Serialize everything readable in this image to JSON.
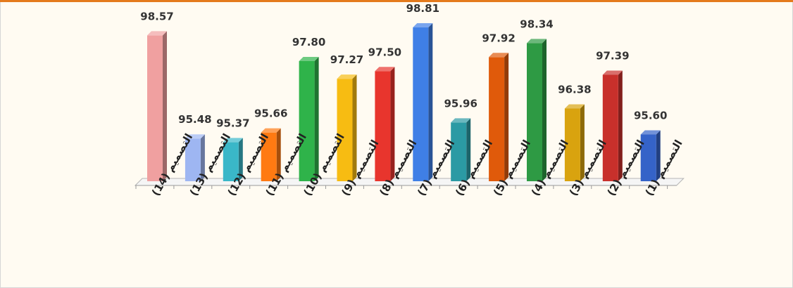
{
  "chart_data": {
    "type": "bar",
    "categories": [
      "التصميم (14)",
      "التصميم (13)",
      "التصميم (12)",
      "التصميم (11)",
      "التصميم (10)",
      "التصميم (9)",
      "التصميم (8)",
      "التصميم (7)",
      "التصميم (6)",
      "التصميم (5)",
      "التصميم (4)",
      "التصميم (3)",
      "التصميم (2)",
      "التصميم (1)"
    ],
    "values": [
      98.57,
      95.48,
      95.37,
      95.66,
      97.8,
      97.27,
      97.5,
      98.81,
      95.96,
      97.92,
      98.34,
      96.38,
      97.39,
      95.6
    ],
    "value_labels": [
      "98.57",
      "95.48",
      "95.37",
      "95.66",
      "97.80",
      "97.27",
      "97.50",
      "98.81",
      "95.96",
      "97.92",
      "98.34",
      "96.38",
      "97.39",
      "95.60"
    ],
    "bar_colors": [
      "#f0a0a0",
      "#9eb6f2",
      "#3ab7c8",
      "#ff7a12",
      "#2fb34a",
      "#f7bc12",
      "#e8352d",
      "#3f7fe6",
      "#2b9aa4",
      "#e05a0a",
      "#2e9a44",
      "#d9a30f",
      "#c8302b",
      "#3563c8"
    ],
    "ylim": [
      94.2,
      99.0
    ],
    "grid": false,
    "legend": "none",
    "style": "3d-columns"
  },
  "colors": {
    "background": "#fffbf2",
    "top_border": "#e47a1c",
    "frame_border": "#d6d6d6",
    "floor": "#f5f5f5"
  }
}
